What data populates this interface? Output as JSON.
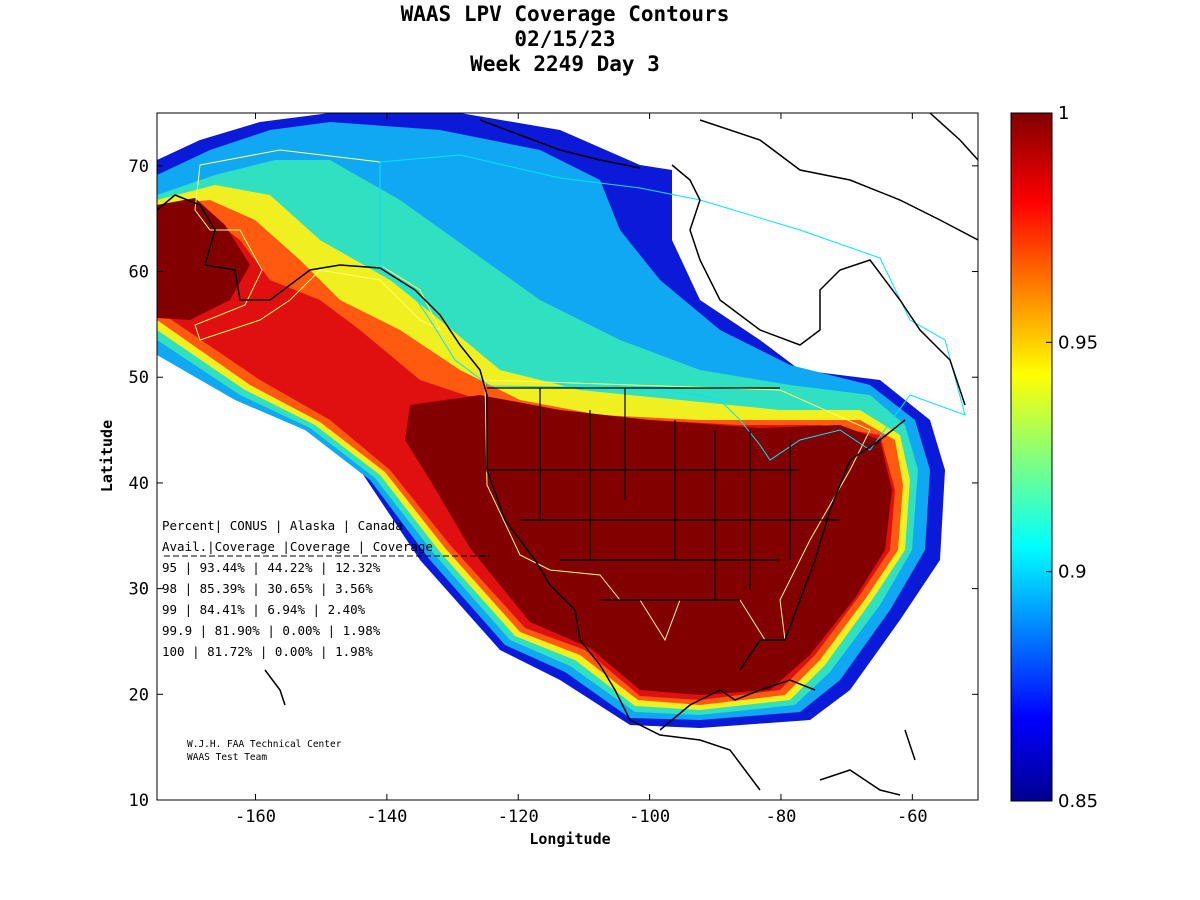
{
  "title": [
    "WAAS LPV Coverage Contours",
    "02/15/23",
    "Week 2249 Day 3"
  ],
  "map": {
    "xlabel": "Longitude",
    "ylabel": "Latitude",
    "xticks": [
      "-160",
      "-140",
      "-120",
      "-100",
      "-80",
      "-60"
    ],
    "yticks": [
      "70",
      "60",
      "50",
      "40",
      "30",
      "20",
      "10"
    ],
    "xlim": [
      -175,
      -50
    ],
    "ylim": [
      10,
      75
    ],
    "colorbar_ticks": [
      "1",
      "0.95",
      "0.9",
      "0.85"
    ],
    "colorbar_range": [
      0.85,
      1.0
    ],
    "colormap": "jet",
    "colors": {
      "high": "#800000",
      "low": "#00008f",
      "mid": "#00ffff",
      "yellow": "#ffff00"
    }
  },
  "table": {
    "header1": "Percent| CONUS   | Alaska  | Canada",
    "header2": " Avail.|Coverage |Coverage | Coverage",
    "rows": [
      "  95   | 93.44%  | 44.22% | 12.32%",
      "  98   | 85.39%  | 30.65% | 3.56%",
      "  99   | 84.41%  | 6.94% | 2.40%",
      "99.9   | 81.90%  | 0.00% | 1.98%",
      " 100   | 81.72%  | 0.00% | 1.98%"
    ]
  },
  "credit": [
    "W.J.H. FAA Technical Center",
    "WAAS Test Team"
  ]
}
